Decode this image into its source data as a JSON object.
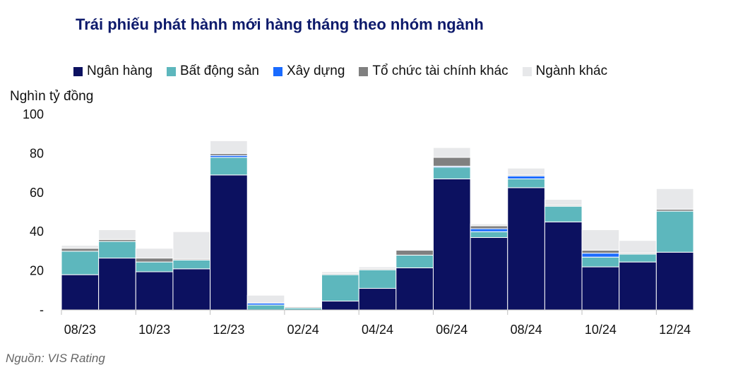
{
  "chart_data": {
    "type": "bar",
    "stacked": true,
    "title": "Trái phiếu phát hành mới hàng tháng theo nhóm ngành",
    "ylabel": "Nghìn tỷ đồng",
    "source": "Nguồn: VIS Rating",
    "ylim": [
      0,
      100
    ],
    "yticks": [
      "-",
      "20",
      "40",
      "60",
      "80",
      "100"
    ],
    "yticks_values": [
      0,
      20,
      40,
      60,
      80,
      100
    ],
    "categories": [
      "08/23",
      "09/23",
      "10/23",
      "11/23",
      "12/23",
      "01/24",
      "02/24",
      "03/24",
      "04/24",
      "05/24",
      "06/24",
      "07/24",
      "08/24",
      "09/24",
      "10/24",
      "11/24",
      "12/24"
    ],
    "xtick_labels": [
      "08/23",
      "",
      "10/23",
      "",
      "12/23",
      "",
      "02/24",
      "",
      "04/24",
      "",
      "06/24",
      "",
      "08/24",
      "",
      "10/24",
      "",
      "12/24"
    ],
    "legend_placement": "top",
    "grid": false,
    "series": [
      {
        "name": "Ngân hàng",
        "color": "#0c1160",
        "values": [
          18,
          26.5,
          19.5,
          21,
          69,
          0,
          0,
          4.5,
          11,
          21.5,
          67,
          37,
          62.5,
          45,
          22,
          24.5,
          29.5
        ]
      },
      {
        "name": "Bất động sản",
        "color": "#5db7bd",
        "values": [
          12,
          8.5,
          5,
          4.5,
          9,
          2.5,
          1,
          13.5,
          9.5,
          6.5,
          6,
          3,
          4.5,
          8,
          5,
          4,
          21
        ]
      },
      {
        "name": "Xây dựng",
        "color": "#1a6bff",
        "values": [
          0,
          0,
          0,
          0,
          1,
          1,
          0,
          0,
          0,
          0,
          0.5,
          1.5,
          1.5,
          0,
          2,
          0,
          0
        ]
      },
      {
        "name": "Tổ chức tài chính khác",
        "color": "#808080",
        "values": [
          1.5,
          1,
          2,
          0.5,
          1,
          0,
          0.5,
          0.5,
          0.5,
          2.5,
          4.5,
          1.5,
          0.5,
          0.5,
          1.5,
          0.5,
          1
        ]
      },
      {
        "name": "Ngành khác",
        "color": "#e7e8ea",
        "values": [
          1.5,
          5,
          5,
          14,
          6.5,
          4,
          0,
          1,
          1,
          0,
          5,
          1,
          3.5,
          3,
          10.5,
          6.5,
          10.5
        ]
      }
    ]
  }
}
